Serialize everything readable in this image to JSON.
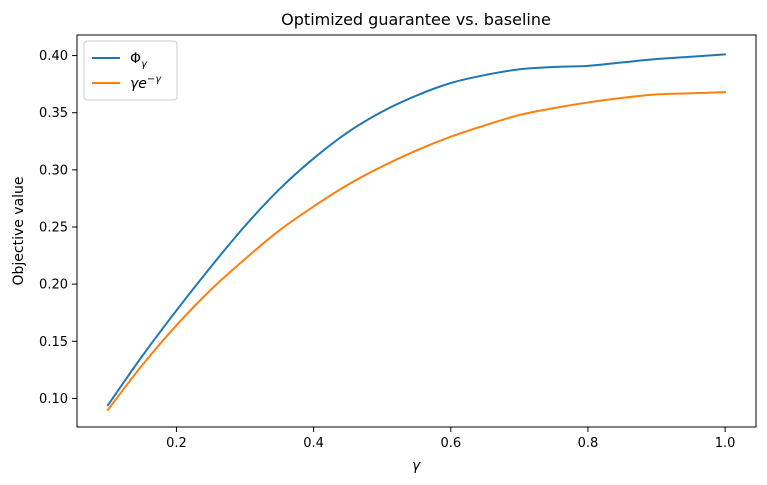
{
  "chart_data": {
    "type": "line",
    "title": "Optimized guarantee vs. baseline",
    "xlabel": "γ",
    "ylabel": "Objective value",
    "xlim": [
      0.055,
      1.045
    ],
    "ylim": [
      0.075,
      0.418
    ],
    "xticks": [
      0.2,
      0.4,
      0.6,
      0.8,
      1.0
    ],
    "xtick_labels": [
      "0.2",
      "0.4",
      "0.6",
      "0.8",
      "1.0"
    ],
    "yticks": [
      0.1,
      0.15,
      0.2,
      0.25,
      0.3,
      0.35,
      0.4
    ],
    "ytick_labels": [
      "0.10",
      "0.15",
      "0.20",
      "0.25",
      "0.30",
      "0.35",
      "0.40"
    ],
    "grid": false,
    "legend_position": "top-left",
    "series": [
      {
        "name": "Φγ",
        "name_main": "Φ",
        "name_sub": "γ",
        "color": "#1f77b4",
        "x": [
          0.1,
          0.15,
          0.2,
          0.25,
          0.3,
          0.35,
          0.4,
          0.45,
          0.5,
          0.55,
          0.6,
          0.65,
          0.7,
          0.75,
          0.8,
          0.85,
          0.9,
          0.95,
          1.0
        ],
        "y": [
          0.094,
          0.137,
          0.177,
          0.215,
          0.251,
          0.283,
          0.31,
          0.333,
          0.351,
          0.365,
          0.376,
          0.383,
          0.388,
          0.39,
          0.391,
          0.394,
          0.397,
          0.399,
          0.401
        ]
      },
      {
        "name": "γe^−γ",
        "name_main": "γe",
        "name_sup": "−γ",
        "color": "#ff7f0e",
        "x": [
          0.1,
          0.15,
          0.2,
          0.25,
          0.3,
          0.35,
          0.4,
          0.45,
          0.5,
          0.55,
          0.6,
          0.65,
          0.7,
          0.75,
          0.8,
          0.85,
          0.9,
          0.95,
          1.0
        ],
        "y": [
          0.09,
          0.129,
          0.164,
          0.195,
          0.222,
          0.247,
          0.268,
          0.287,
          0.303,
          0.317,
          0.329,
          0.339,
          0.348,
          0.354,
          0.359,
          0.363,
          0.366,
          0.367,
          0.368
        ]
      }
    ]
  }
}
